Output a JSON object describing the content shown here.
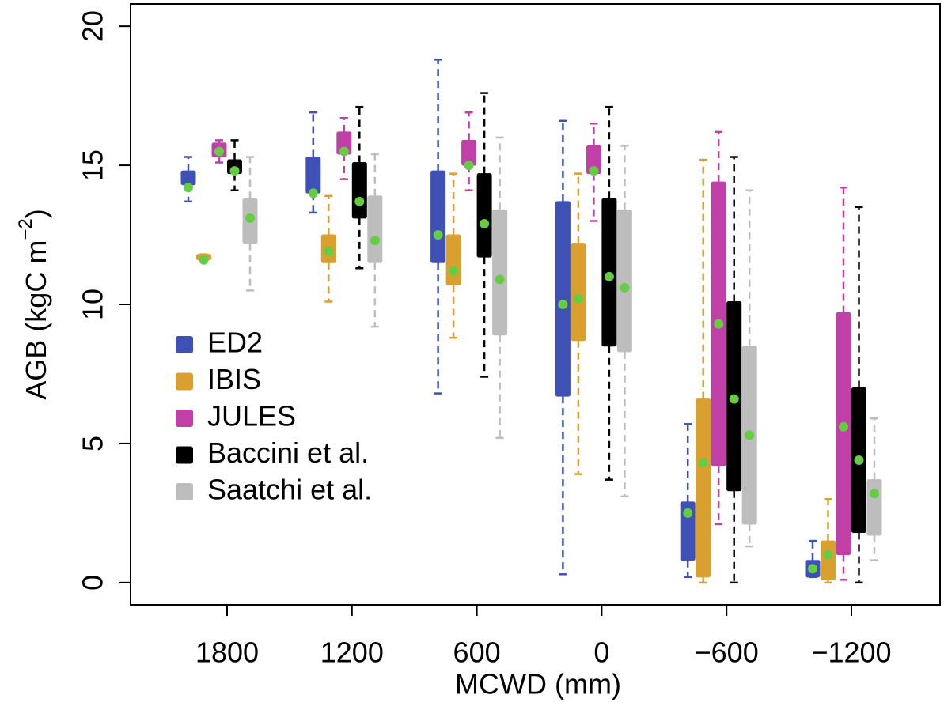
{
  "chart_data": {
    "type": "box",
    "x_label": "MCWD (mm)",
    "y_label": {
      "text": "AGB (kgC m",
      "superscript": "−2",
      "suffix": ")"
    },
    "categories": [
      "1800",
      "1200",
      "600",
      "0",
      "−600",
      "−1200"
    ],
    "ylim": [
      -0.8,
      20.8
    ],
    "yticks": [
      0,
      5,
      10,
      15,
      20
    ],
    "mean_color": "#66cc44",
    "legend_position": "left",
    "series": [
      {
        "name": "ED2",
        "color": "#3f51b5",
        "whisker_low": [
          13.7,
          13.3,
          6.8,
          0.3,
          0.2,
          0.2
        ],
        "q1": [
          14.3,
          14.0,
          11.5,
          6.7,
          0.8,
          0.2
        ],
        "q3": [
          14.8,
          15.3,
          14.8,
          13.7,
          2.9,
          0.8
        ],
        "whisker_high": [
          15.3,
          16.9,
          18.8,
          16.6,
          5.7,
          1.5
        ],
        "mean": [
          14.2,
          14.0,
          12.5,
          10.0,
          2.5,
          0.5
        ]
      },
      {
        "name": "IBIS",
        "color": "#d9a030",
        "whisker_low": [
          11.6,
          10.1,
          8.8,
          3.9,
          0,
          0
        ],
        "q1": [
          11.6,
          11.5,
          10.7,
          8.7,
          0.2,
          0.1
        ],
        "q3": [
          11.8,
          12.5,
          12.5,
          12.2,
          6.6,
          1.5
        ],
        "whisker_high": [
          11.8,
          13.9,
          14.7,
          14.7,
          15.2,
          3.0
        ],
        "mean": [
          11.6,
          11.9,
          11.2,
          10.2,
          4.3,
          1.0
        ]
      },
      {
        "name": "JULES",
        "color": "#c040a8",
        "whisker_low": [
          15.1,
          14.5,
          14.1,
          13.0,
          2.1,
          0.1
        ],
        "q1": [
          15.3,
          15.4,
          15.0,
          14.7,
          4.2,
          1.0
        ],
        "q3": [
          15.8,
          16.2,
          15.9,
          15.7,
          14.4,
          9.7
        ],
        "whisker_high": [
          15.9,
          16.7,
          16.9,
          16.5,
          16.2,
          14.2
        ],
        "mean": [
          15.5,
          15.5,
          15.0,
          14.8,
          9.3,
          5.6
        ]
      },
      {
        "name": "Baccini et al.",
        "color": "#000000",
        "whisker_low": [
          14.1,
          11.3,
          7.4,
          3.7,
          0,
          0
        ],
        "q1": [
          14.7,
          13.1,
          11.7,
          8.5,
          3.3,
          1.8
        ],
        "q3": [
          15.2,
          15.1,
          14.7,
          13.8,
          10.1,
          7.0
        ],
        "whisker_high": [
          15.9,
          17.1,
          17.6,
          17.1,
          15.3,
          13.5
        ],
        "mean": [
          14.8,
          13.7,
          12.9,
          11.0,
          6.6,
          4.4
        ]
      },
      {
        "name": "Saatchi et al.",
        "color": "#bdbdbd",
        "whisker_low": [
          10.5,
          9.2,
          5.2,
          3.1,
          1.3,
          0.8
        ],
        "q1": [
          12.2,
          11.5,
          8.9,
          8.3,
          2.1,
          1.7
        ],
        "q3": [
          13.8,
          13.9,
          13.4,
          13.4,
          8.5,
          3.7
        ],
        "whisker_high": [
          15.3,
          15.4,
          16.0,
          15.7,
          14.1,
          5.9
        ],
        "mean": [
          13.1,
          12.3,
          10.9,
          10.6,
          5.3,
          3.2
        ]
      }
    ]
  }
}
